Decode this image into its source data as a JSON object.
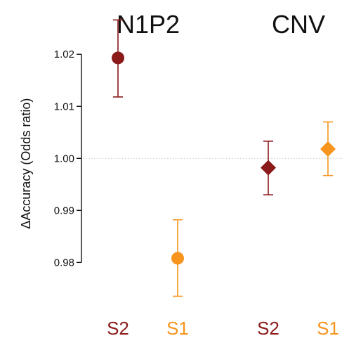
{
  "chart_data": {
    "type": "scatter",
    "title": "",
    "group_titles": [
      "N1P2",
      "CNV"
    ],
    "ylabel": "ΔAccuracy (Odds ratio)",
    "xlabel": "",
    "ylim": [
      0.971,
      1.028
    ],
    "yticks": [
      0.98,
      0.99,
      1.0,
      1.01,
      1.02
    ],
    "ytick_labels": [
      "0.98",
      "0.99",
      "1.00",
      "1.01",
      "1.02"
    ],
    "reference_line": 1.0,
    "categories": [
      "S2",
      "S1",
      "S2",
      "S1"
    ],
    "points": [
      {
        "group": "N1P2",
        "label": "S2",
        "y": 1.0193,
        "ci_low": 1.0118,
        "ci_high": 1.0266,
        "marker": "circle",
        "color": "#8B1A1A"
      },
      {
        "group": "N1P2",
        "label": "S1",
        "y": 0.9808,
        "ci_low": 0.9735,
        "ci_high": 0.9882,
        "marker": "circle",
        "color": "#F7941D"
      },
      {
        "group": "CNV",
        "label": "S2",
        "y": 0.9982,
        "ci_low": 0.993,
        "ci_high": 1.0033,
        "marker": "diamond",
        "color": "#8B1A1A"
      },
      {
        "group": "CNV",
        "label": "S1",
        "y": 1.0018,
        "ci_low": 0.9967,
        "ci_high": 1.007,
        "marker": "diamond",
        "color": "#F7941D"
      }
    ],
    "grid": false
  }
}
